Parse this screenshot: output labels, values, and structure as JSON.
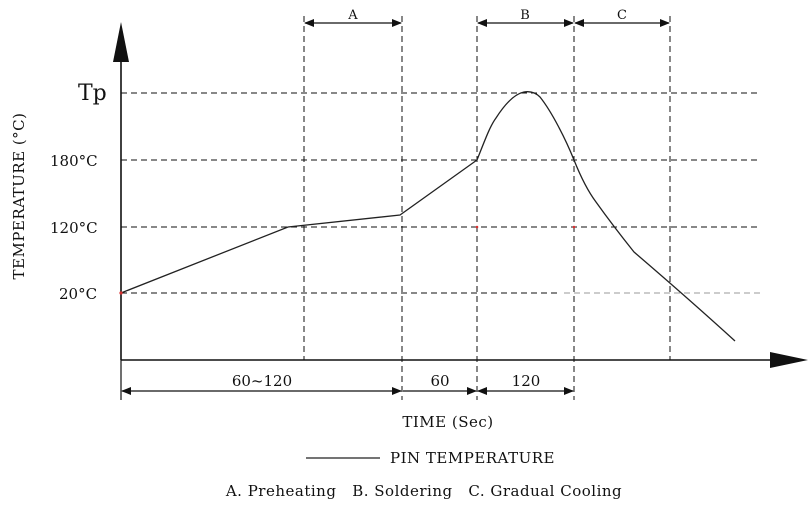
{
  "diagram": {
    "y_axis_label": "TEMPERATURE (°C)",
    "x_axis_label": "TIME (Sec)",
    "legend_label": "PIN TEMPERATURE",
    "caption": "A. Preheating   B. Soldering   C. Gradual Cooling",
    "y_ticks": [
      "Tp",
      "180°C",
      "120°C",
      "20°C"
    ],
    "zones": [
      "A",
      "B",
      "C"
    ],
    "durations": [
      "60~120",
      "60",
      "120"
    ],
    "colors": {
      "line": "#111111",
      "marker": "#d93030"
    }
  }
}
